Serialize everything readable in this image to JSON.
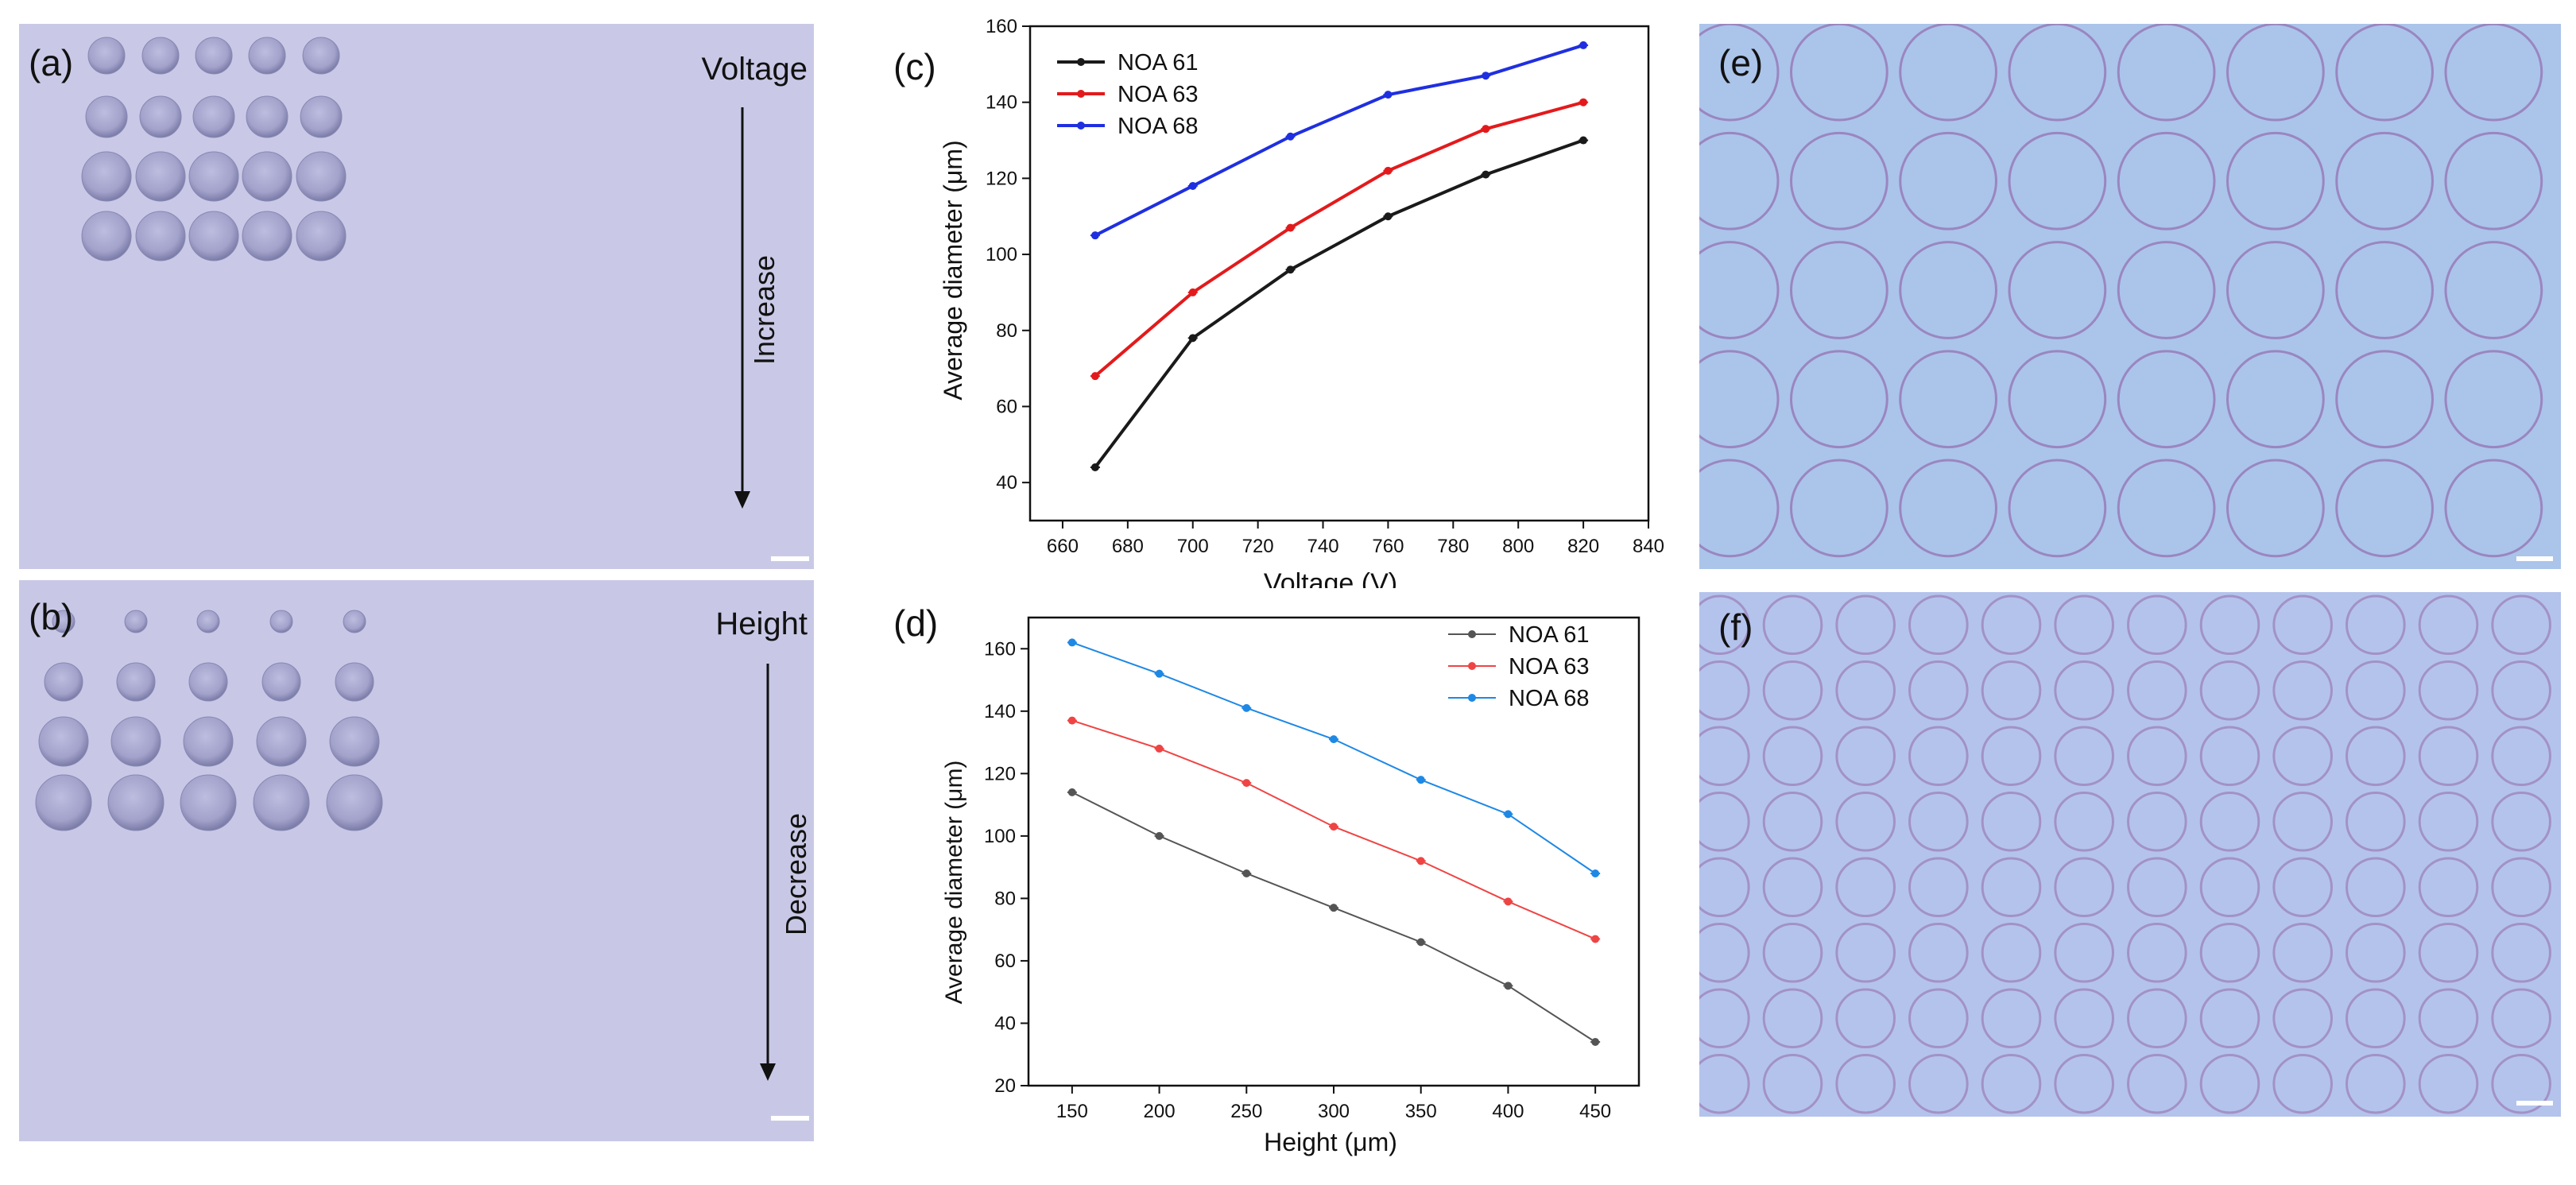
{
  "figure": {
    "panel_a": {
      "label": "(a)",
      "title": "Voltage",
      "arrow_text": "Increase",
      "rows": [
        {
          "n": 5,
          "size": 46
        },
        {
          "n": 5,
          "size": 52
        },
        {
          "n": 5,
          "size": 62
        },
        {
          "n": 5,
          "size": 62
        }
      ]
    },
    "panel_b": {
      "label": "(b)",
      "title": "Height",
      "arrow_text": "Decrease",
      "rows": [
        {
          "n": 5,
          "size": 28
        },
        {
          "n": 5,
          "size": 48
        },
        {
          "n": 5,
          "size": 62
        },
        {
          "n": 5,
          "size": 70
        }
      ]
    },
    "panel_e": {
      "label": "(e)",
      "cols": 8,
      "rows": 5
    },
    "panel_f": {
      "label": "(f)",
      "cols": 12,
      "rows": 8
    },
    "colors": {
      "background_a": "#c7c7e6",
      "background_e": "#a9c3ea",
      "background_f": "#b3c2ec",
      "droplet": "#9b9bc6",
      "scale_bar": "#ffffff"
    }
  },
  "chart_data": [
    {
      "type": "line",
      "panel_label": "(c)",
      "title": "",
      "xlabel": "Voltage (V)",
      "ylabel": "Average diameter (μm)",
      "xlim": [
        650,
        840
      ],
      "ylim": [
        30,
        160
      ],
      "x_ticks": [
        "660",
        "680",
        "700",
        "720",
        "740",
        "760",
        "780",
        "800",
        "820",
        "840"
      ],
      "y_ticks": [
        "40",
        "60",
        "80",
        "100",
        "120",
        "140",
        "160"
      ],
      "legend_position": "top-left",
      "series": [
        {
          "name": "NOA 61",
          "color": "#1a1a1a",
          "x": [
            670,
            700,
            730,
            760,
            790,
            820
          ],
          "values": [
            44,
            78,
            96,
            110,
            121,
            130
          ]
        },
        {
          "name": "NOA 63",
          "color": "#e31a1c",
          "x": [
            670,
            700,
            730,
            760,
            790,
            820
          ],
          "values": [
            68,
            90,
            107,
            122,
            133,
            140
          ]
        },
        {
          "name": "NOA 68",
          "color": "#1f2fe0",
          "x": [
            670,
            700,
            730,
            760,
            790,
            820
          ],
          "values": [
            105,
            118,
            131,
            142,
            147,
            155
          ]
        }
      ]
    },
    {
      "type": "line",
      "panel_label": "(d)",
      "title": "",
      "xlabel": "Height (μm)",
      "ylabel": "Average diameter (μm)",
      "xlim": [
        125,
        475
      ],
      "ylim": [
        20,
        170
      ],
      "x_ticks": [
        "150",
        "200",
        "250",
        "300",
        "350",
        "400",
        "450"
      ],
      "y_ticks": [
        "20",
        "40",
        "60",
        "80",
        "100",
        "120",
        "140",
        "160"
      ],
      "legend_position": "top-right",
      "series": [
        {
          "name": "NOA 61",
          "color": "#555555",
          "x": [
            150,
            200,
            250,
            300,
            350,
            400,
            450
          ],
          "values": [
            114,
            100,
            88,
            77,
            66,
            52,
            34
          ]
        },
        {
          "name": "NOA 63",
          "color": "#ef4444",
          "x": [
            150,
            200,
            250,
            300,
            350,
            400,
            450
          ],
          "values": [
            137,
            128,
            117,
            103,
            92,
            79,
            67
          ]
        },
        {
          "name": "NOA 68",
          "color": "#1e88e5",
          "x": [
            150,
            200,
            250,
            300,
            350,
            400,
            450
          ],
          "values": [
            162,
            152,
            141,
            131,
            118,
            107,
            88
          ]
        }
      ]
    }
  ]
}
